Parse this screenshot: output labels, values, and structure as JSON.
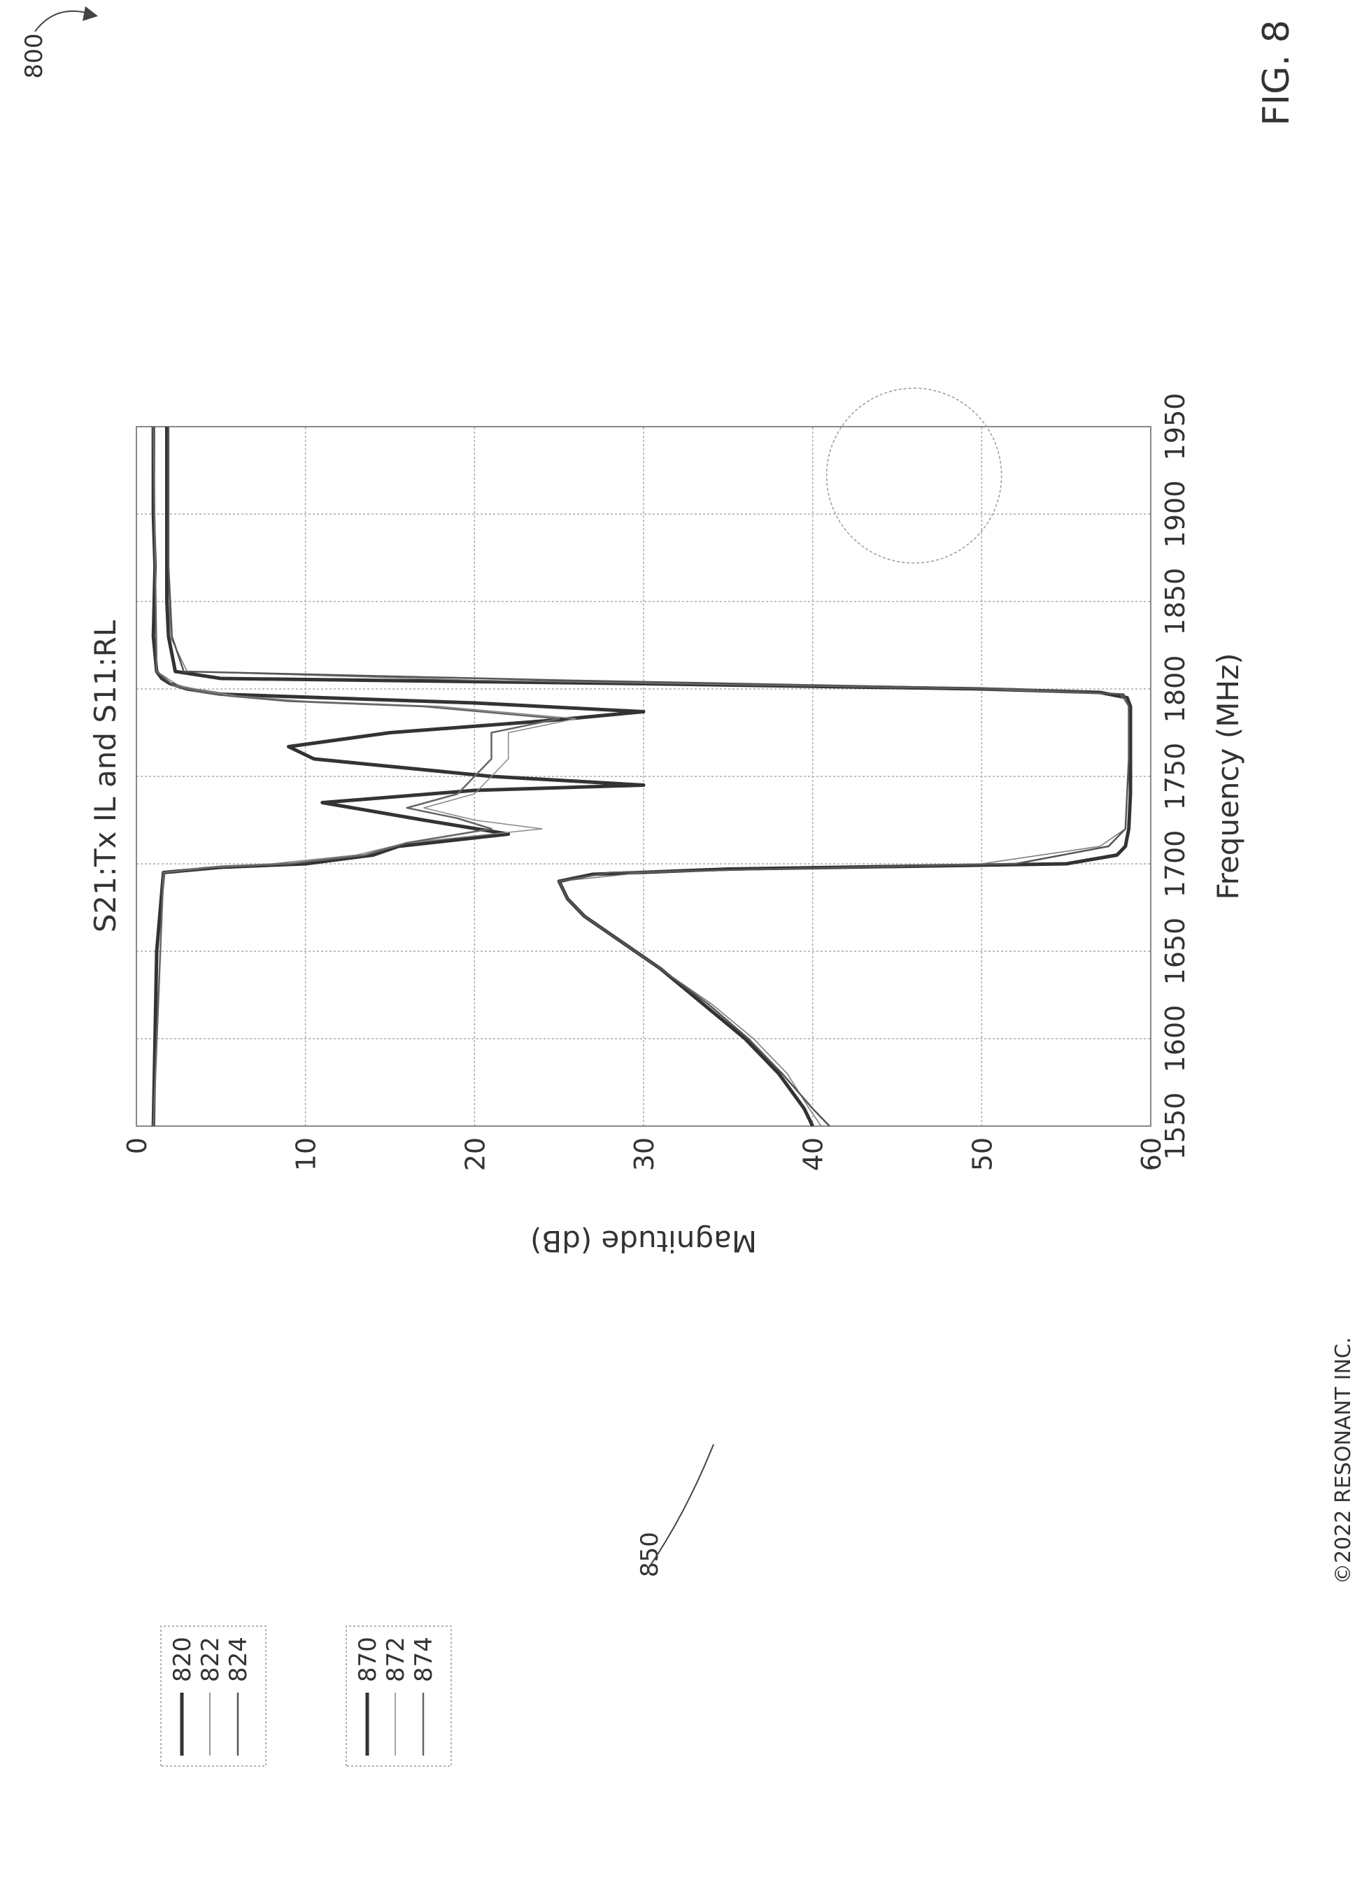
{
  "figure": {
    "ref_number": "800",
    "caption": "FIG. 8",
    "copyright": "©2022 RESONANT INC.",
    "callout_label": "850"
  },
  "chart_data": {
    "type": "line",
    "title": "S21:Tx IL and S11:RL",
    "xlabel": "Frequency (MHz)",
    "ylabel": "Magnitude (dB)",
    "xlim": [
      1550,
      1950
    ],
    "ylim": [
      0,
      60
    ],
    "y_inverted": true,
    "grid": true,
    "x_ticks": [
      1550,
      1600,
      1650,
      1700,
      1750,
      1800,
      1850,
      1900,
      1950
    ],
    "y_ticks": [
      0,
      10,
      20,
      30,
      40,
      50,
      60
    ],
    "x_tick_labels": [
      "1550",
      "1600",
      "1650",
      "1700",
      "1750",
      "1800",
      "1850",
      "1900",
      "1950"
    ],
    "y_tick_labels": [
      "0",
      "10",
      "20",
      "30",
      "40",
      "50",
      "60"
    ],
    "legend_placement": "left",
    "legends": [
      {
        "entries": [
          "820",
          "822",
          "824"
        ]
      },
      {
        "entries": [
          "870",
          "872",
          "874"
        ]
      }
    ],
    "series": [
      {
        "name": "820",
        "color": "#333333",
        "width": 5,
        "x": [
          1550,
          1560,
          1580,
          1600,
          1620,
          1640,
          1660,
          1670,
          1680,
          1690,
          1694,
          1697,
          1700,
          1705,
          1710,
          1720,
          1740,
          1760,
          1780,
          1790,
          1795,
          1798,
          1800,
          1803,
          1806,
          1810,
          1830,
          1850,
          1870,
          1880,
          1890,
          1900,
          1920,
          1950
        ],
        "y": [
          40,
          39.5,
          38,
          36,
          33.5,
          31,
          28,
          26.5,
          25.5,
          25,
          27,
          35,
          55,
          58,
          58.5,
          58.7,
          58.8,
          58.8,
          58.8,
          58.8,
          58.6,
          57,
          50,
          30,
          5,
          2.3,
          1.9,
          1.8,
          1.8,
          1.8,
          1.8,
          1.8,
          1.8,
          1.8
        ]
      },
      {
        "name": "822",
        "color": "#777777",
        "width": 1.5,
        "x": [
          1550,
          1560,
          1580,
          1600,
          1620,
          1640,
          1660,
          1670,
          1680,
          1690,
          1695,
          1700,
          1710,
          1720,
          1760,
          1790,
          1797,
          1800,
          1805,
          1810,
          1830,
          1870,
          1900,
          1950
        ],
        "y": [
          40.5,
          39.8,
          38.5,
          36.5,
          34,
          31,
          28,
          26.5,
          25.5,
          25,
          30,
          50,
          57,
          58.5,
          58.7,
          58.7,
          58.2,
          50,
          20,
          3,
          2,
          1.9,
          1.9,
          1.9
        ]
      },
      {
        "name": "824",
        "color": "#555555",
        "width": 2.5,
        "x": [
          1550,
          1560,
          1580,
          1600,
          1620,
          1640,
          1660,
          1670,
          1680,
          1690,
          1695,
          1700,
          1710,
          1720,
          1760,
          1790,
          1797,
          1800,
          1805,
          1810,
          1830,
          1870,
          1900,
          1950
        ],
        "y": [
          41,
          40,
          38.2,
          36.2,
          33.8,
          31,
          28,
          26.5,
          25.5,
          25,
          28,
          52,
          57.5,
          58.5,
          58.7,
          58.7,
          58.4,
          52,
          25,
          2.8,
          2.1,
          1.9,
          1.9,
          1.9
        ]
      },
      {
        "name": "870",
        "color": "#333333",
        "width": 5,
        "x": [
          1550,
          1650,
          1695,
          1698,
          1700,
          1705,
          1710,
          1717,
          1725,
          1735,
          1742,
          1745,
          1750,
          1760,
          1767,
          1775,
          1782,
          1787,
          1792,
          1797,
          1800,
          1803,
          1806,
          1810,
          1830,
          1870,
          1900,
          1950
        ],
        "y": [
          1,
          1.2,
          1.6,
          5,
          10,
          14,
          15.5,
          22,
          17,
          11,
          20,
          30,
          21,
          10.5,
          9,
          15,
          24.5,
          30,
          20,
          5,
          3,
          2,
          1.5,
          1.2,
          1,
          1.1,
          1,
          1
        ]
      },
      {
        "name": "872",
        "color": "#888888",
        "width": 1.5,
        "x": [
          1550,
          1695,
          1698,
          1700,
          1705,
          1712,
          1720,
          1725,
          1732,
          1740,
          1760,
          1775,
          1783,
          1790,
          1793,
          1796,
          1799,
          1802,
          1810,
          1950
        ],
        "y": [
          1,
          1.6,
          4,
          8,
          13,
          16,
          24,
          20,
          17,
          20,
          22,
          22,
          26,
          18,
          10,
          6,
          4,
          2.5,
          1.2,
          1
        ]
      },
      {
        "name": "874",
        "color": "#666666",
        "width": 2.5,
        "x": [
          1550,
          1695,
          1698,
          1700,
          1705,
          1712,
          1720,
          1726,
          1732,
          1740,
          1760,
          1775,
          1783,
          1790,
          1793,
          1796,
          1799,
          1802,
          1810,
          1950
        ],
        "y": [
          1,
          1.6,
          4.5,
          9,
          13.5,
          16,
          21,
          19,
          16,
          19,
          21,
          21,
          25,
          17,
          9,
          5.5,
          3.5,
          2.2,
          1.2,
          1
        ]
      }
    ]
  }
}
